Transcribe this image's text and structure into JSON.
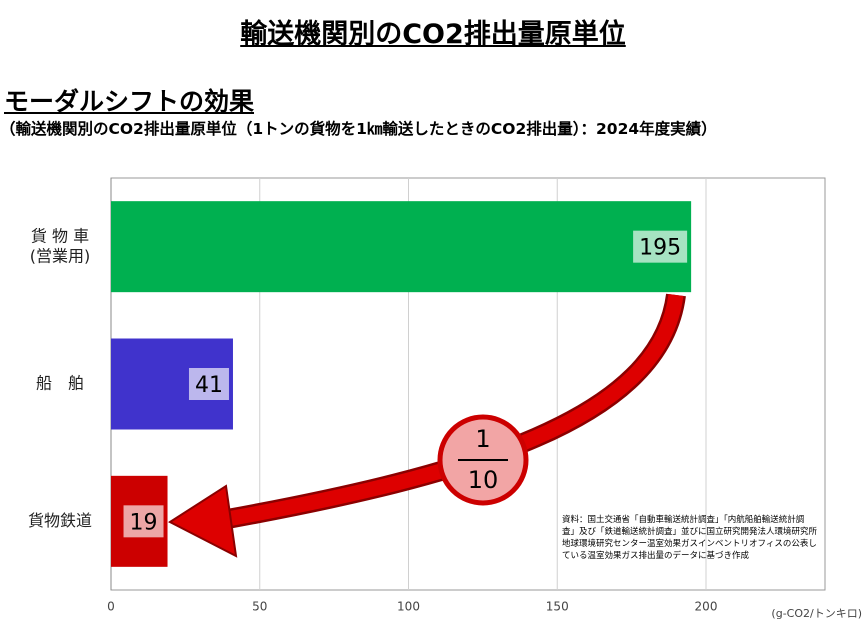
{
  "chart_data": {
    "type": "bar",
    "orientation": "horizontal",
    "title": "輸送機関別のCO2排出量原単位",
    "subtitle": "モーダルシフトの効果",
    "description": "（輸送機関別のCO2排出量原単位（1トンの貨物を1㎞輸送したときのCO2排出量）：2024年度実績）",
    "categories": [
      "貨 物 車\n(営業用)",
      "船　舶",
      "貨物鉄道"
    ],
    "values": [
      195,
      41,
      19
    ],
    "colors": [
      "#00b050",
      "#4033cc",
      "#cc0000"
    ],
    "xlim": [
      0,
      240
    ],
    "xticks": [
      0,
      50,
      100,
      150,
      200
    ],
    "x_unit": "(g-CO2/トンキロ)",
    "grid": true,
    "ratio_annotation": {
      "numerator": "1",
      "denominator": "10"
    },
    "source": "資料：国土交通省「自動車輸送統計調査」「内航船舶輸送統計調査」及び「鉄道輸送統計調査」並びに国立研究開発法人環境研究所 地球環境研究センター温室効果ガスインベントリオフィスの公表している温室効果ガス排出量のデータに基づき作成"
  }
}
